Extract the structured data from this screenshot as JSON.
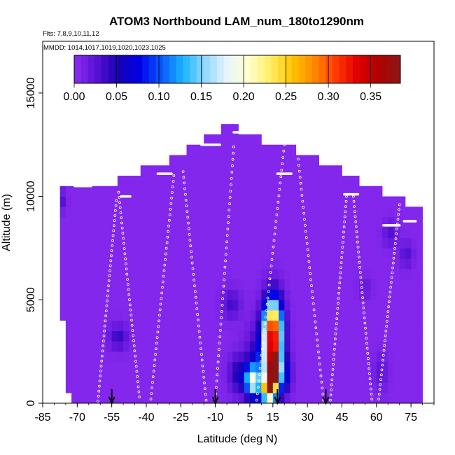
{
  "chart_data": {
    "type": "heatmap",
    "title": "ATOM3 Northbound LAM_num_180to1290nm",
    "subtitle_flights": "Flts: 7,8,9,10,11,12",
    "subtitle_dates": "MMDD: 1014,1017,1019,1020,1023,1025",
    "xlabel": "Latitude (deg N)",
    "ylabel": "Altitude (m)",
    "xlim": [
      -85,
      85
    ],
    "ylim": [
      0,
      17500
    ],
    "x_ticks": [
      -85,
      -70,
      -55,
      -40,
      -25,
      -10,
      5,
      15,
      30,
      45,
      60,
      75
    ],
    "y_ticks": [
      0,
      5000,
      10000,
      15000
    ],
    "grid": false,
    "colorbar": {
      "min": 0,
      "max": 0.385,
      "ticks": [
        0.0,
        0.05,
        0.1,
        0.15,
        0.2,
        0.25,
        0.3,
        0.35
      ],
      "tick_labels": [
        "0.00",
        "0.05",
        "0.10",
        "0.15",
        "0.20",
        "0.25",
        "0.30",
        "0.35"
      ],
      "colors": [
        "#8c2cf0",
        "#5a12d6",
        "#1a00b4",
        "#0000e6",
        "#0a58ff",
        "#18b4ff",
        "#8fd6ff",
        "#e6f4ff",
        "#ffffd0",
        "#ffee66",
        "#ffc400",
        "#ff8c00",
        "#ff3c00",
        "#e00000",
        "#b00000",
        "#8a1818"
      ]
    },
    "background_value": 0.005,
    "coverage_top": [
      [
        -79,
        10500
      ],
      [
        -57,
        10400
      ],
      [
        -46,
        10700
      ],
      [
        -41,
        11100
      ],
      [
        -31,
        11500
      ],
      [
        -22,
        12000
      ],
      [
        -14,
        12500
      ],
      [
        -8,
        12900
      ],
      [
        -3,
        13250
      ],
      [
        2,
        12900
      ],
      [
        10,
        12500
      ],
      [
        20,
        12200
      ],
      [
        30,
        11800
      ],
      [
        40,
        11300
      ],
      [
        48,
        10700
      ],
      [
        56,
        10300
      ],
      [
        64,
        9900
      ],
      [
        72,
        9500
      ],
      [
        79,
        9300
      ]
    ],
    "coverage_bottom_left": [
      [
        -79,
        9500
      ],
      [
        -77,
        4000
      ],
      [
        -74,
        0
      ]
    ],
    "features": [
      {
        "lat": 15,
        "alt": 3500,
        "dlat": 4,
        "dalt": 1500,
        "v": 0.32
      },
      {
        "lat": 15,
        "alt": 1500,
        "dlat": 3,
        "dalt": 1200,
        "v": 0.26
      },
      {
        "lat": 16,
        "alt": 1700,
        "dlat": 1.5,
        "dalt": 500,
        "v": 0.35
      },
      {
        "lat": 13,
        "alt": 700,
        "dlat": 2.5,
        "dalt": 500,
        "v": 0.25
      },
      {
        "lat": 10,
        "alt": 1600,
        "dlat": 6,
        "dalt": 1800,
        "v": 0.08
      },
      {
        "lat": 6,
        "alt": 1100,
        "dlat": 3,
        "dalt": 700,
        "v": 0.15
      },
      {
        "lat": 20,
        "alt": 1400,
        "dlat": 3,
        "dalt": 900,
        "v": 0.07
      },
      {
        "lat": 0,
        "alt": 1400,
        "dlat": 4,
        "dalt": 900,
        "v": 0.05
      },
      {
        "lat": -3,
        "alt": 4800,
        "dlat": 4,
        "dalt": 700,
        "v": 0.035
      },
      {
        "lat": -52,
        "alt": 3200,
        "dlat": 4,
        "dalt": 600,
        "v": 0.04
      },
      {
        "lat": -77,
        "alt": 9800,
        "dlat": 2,
        "dalt": 500,
        "v": 0.03
      },
      {
        "lat": 66,
        "alt": 8200,
        "dlat": 3,
        "dalt": 600,
        "v": 0.03
      },
      {
        "lat": 73,
        "alt": 7200,
        "dlat": 3,
        "dalt": 600,
        "v": 0.03
      },
      {
        "lat": 62,
        "alt": 1500,
        "dlat": 3,
        "dalt": 900,
        "v": 0.025
      },
      {
        "lat": 55,
        "alt": 5600,
        "dlat": 3,
        "dalt": 500,
        "v": 0.022
      }
    ],
    "flight_tracks": [
      {
        "type": "profile",
        "lat0": -61,
        "alt0": 100,
        "lat1": -53,
        "alt1": 9800
      },
      {
        "type": "profile",
        "lat0": -52,
        "alt0": 10200,
        "lat1": -43,
        "alt1": 300
      },
      {
        "type": "profile",
        "lat0": -38,
        "alt0": 200,
        "lat1": -28,
        "alt1": 11000
      },
      {
        "type": "profile",
        "lat0": -24,
        "alt0": 11200,
        "lat1": -14,
        "alt1": 150
      },
      {
        "type": "profile",
        "lat0": -10,
        "alt0": 150,
        "lat1": -2,
        "alt1": 12400
      },
      {
        "type": "profile",
        "lat0": 8,
        "alt0": 150,
        "lat1": 20,
        "alt1": 12500
      },
      {
        "type": "profile",
        "lat0": 26,
        "alt0": 11800,
        "lat1": 37,
        "alt1": 150
      },
      {
        "type": "profile",
        "lat0": 40,
        "alt0": 150,
        "lat1": 47,
        "alt1": 10000
      },
      {
        "type": "profile",
        "lat0": 50,
        "alt0": 10000,
        "lat1": 58,
        "alt1": 200
      },
      {
        "type": "profile",
        "lat0": 61,
        "alt0": 200,
        "lat1": 70,
        "alt1": 9600
      },
      {
        "type": "level",
        "lat0": -71,
        "lat1": -64,
        "alt": 10500
      },
      {
        "type": "level",
        "lat0": -51,
        "lat1": -47,
        "alt": 10000
      },
      {
        "type": "level",
        "lat0": -35,
        "lat1": -29,
        "alt": 11100
      },
      {
        "type": "level",
        "lat0": -16,
        "lat1": -8,
        "alt": 12500
      },
      {
        "type": "level",
        "lat0": -2,
        "lat1": 3,
        "alt": 13100
      },
      {
        "type": "level",
        "lat0": 17,
        "lat1": 23,
        "alt": 11100
      },
      {
        "type": "level",
        "lat0": 46,
        "lat1": 52,
        "alt": 10100
      },
      {
        "type": "level",
        "lat0": 63,
        "lat1": 70,
        "alt": 8600
      },
      {
        "type": "level",
        "lat0": 72,
        "lat1": 77,
        "alt": 8800
      }
    ],
    "markers": [
      {
        "lat": -55,
        "label": "arrow"
      },
      {
        "lat": -10,
        "label": "arrow"
      },
      {
        "lat": 17,
        "label": "arrow"
      },
      {
        "lat": 38,
        "label": "arrow"
      }
    ]
  }
}
